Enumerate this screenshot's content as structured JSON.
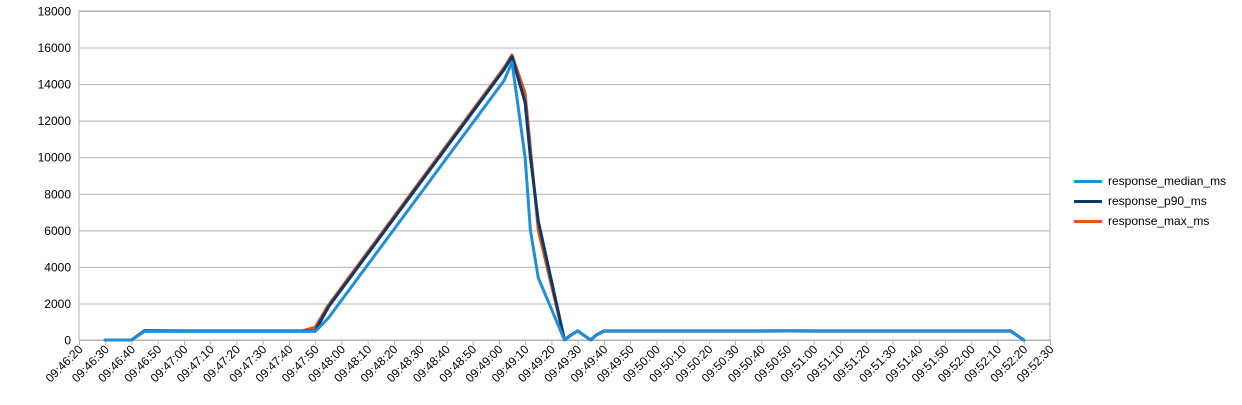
{
  "chart_data": {
    "type": "line",
    "ylim": [
      0,
      18000
    ],
    "y_ticks": [
      0,
      2000,
      4000,
      6000,
      8000,
      10000,
      12000,
      14000,
      16000,
      18000
    ],
    "x_tick_labels": [
      "09:46:20",
      "09:46:30",
      "09:46:40",
      "09:46:50",
      "09:47:00",
      "09:47:10",
      "09:47:20",
      "09:47:30",
      "09:47:40",
      "09:47:50",
      "09:48:00",
      "09:48:10",
      "09:48:20",
      "09:48:30",
      "09:48:40",
      "09:48:50",
      "09:49:00",
      "09:49:10",
      "09:49:20",
      "09:49:30",
      "09:49:40",
      "09:49:50",
      "09:50:00",
      "09:50:10",
      "09:50:20",
      "09:50:30",
      "09:50:40",
      "09:50:50",
      "09:51:00",
      "09:51:10",
      "09:51:20",
      "09:51:30",
      "09:51:40",
      "09:51:50",
      "09:52:00",
      "09:52:10",
      "09:52:20",
      "09:52:30"
    ],
    "xlim": [
      "09:46:20",
      "09:52:30"
    ],
    "grid": true,
    "legend_position": "right",
    "x": [
      "09:46:30",
      "09:46:35",
      "09:46:40",
      "09:46:45",
      "09:47:00",
      "09:47:10",
      "09:47:20",
      "09:47:30",
      "09:47:40",
      "09:47:45",
      "09:47:50",
      "09:47:55",
      "09:49:02",
      "09:49:05",
      "09:49:10",
      "09:49:12",
      "09:49:15",
      "09:49:25",
      "09:49:27",
      "09:49:30",
      "09:49:35",
      "09:49:37",
      "09:49:40",
      "09:49:50",
      "09:50:00",
      "09:50:10",
      "09:50:20",
      "09:50:30",
      "09:50:40",
      "09:50:50",
      "09:51:00",
      "09:51:10",
      "09:51:20",
      "09:51:30",
      "09:51:40",
      "09:51:50",
      "09:52:00",
      "09:52:10",
      "09:52:15",
      "09:52:20"
    ],
    "series": [
      {
        "name": "response_median_ms",
        "color": "#1f8fd6",
        "values": [
          0,
          0,
          0,
          480,
          470,
          470,
          470,
          470,
          470,
          470,
          470,
          1200,
          14200,
          15200,
          10000,
          6000,
          3400,
          0,
          200,
          500,
          0,
          250,
          480,
          480,
          480,
          480,
          480,
          480,
          480,
          490,
          480,
          480,
          480,
          480,
          480,
          480,
          480,
          480,
          480,
          0
        ]
      },
      {
        "name": "response_p90_ms",
        "color": "#0a3a6b",
        "values": [
          0,
          0,
          0,
          500,
          490,
          490,
          490,
          490,
          490,
          490,
          490,
          1800,
          14800,
          15500,
          13000,
          10000,
          6500,
          0,
          220,
          500,
          0,
          260,
          490,
          490,
          490,
          490,
          490,
          490,
          490,
          500,
          490,
          490,
          490,
          490,
          490,
          490,
          490,
          490,
          490,
          0
        ]
      },
      {
        "name": "response_max_ms",
        "color": "#e8501e",
        "values": [
          0,
          0,
          0,
          520,
          500,
          500,
          500,
          500,
          500,
          500,
          700,
          1900,
          14900,
          15600,
          13500,
          10500,
          6000,
          0,
          230,
          500,
          0,
          270,
          500,
          500,
          500,
          500,
          500,
          500,
          500,
          510,
          500,
          500,
          500,
          500,
          500,
          500,
          500,
          500,
          500,
          0
        ]
      }
    ]
  }
}
